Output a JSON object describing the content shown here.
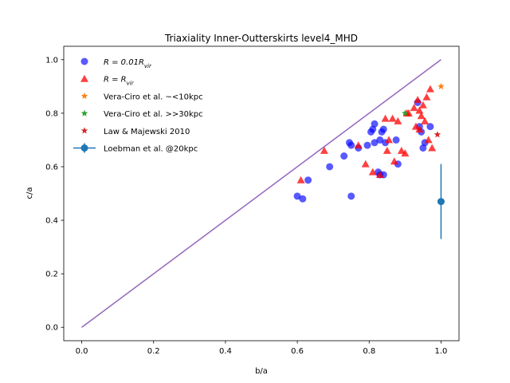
{
  "chart_data": {
    "type": "scatter",
    "title": "Triaxiality Inner-Outterskirts level4_MHD",
    "xlabel": "b/a",
    "ylabel": "c/a",
    "xlim": [
      -0.05,
      1.05
    ],
    "ylim": [
      -0.05,
      1.05
    ],
    "xticks": [
      "0.0",
      "0.2",
      "0.4",
      "0.6",
      "0.8",
      "1.0"
    ],
    "yticks": [
      "0.0",
      "0.2",
      "0.4",
      "0.6",
      "0.8",
      "1.0"
    ],
    "grid": false,
    "legend_position": "upper-left",
    "reference_line": {
      "x": [
        0.0,
        1.0
      ],
      "y": [
        0.0,
        1.0
      ],
      "color": "#9467bd"
    },
    "series": [
      {
        "name": "R = 0.01R_vir",
        "legend_label": "R = 0.01R",
        "legend_sub": "vir",
        "marker": "circle",
        "color": "#0000ff",
        "alpha": 0.65,
        "points": [
          [
            0.6,
            0.49
          ],
          [
            0.615,
            0.48
          ],
          [
            0.63,
            0.55
          ],
          [
            0.69,
            0.6
          ],
          [
            0.73,
            0.64
          ],
          [
            0.745,
            0.69
          ],
          [
            0.75,
            0.68
          ],
          [
            0.75,
            0.49
          ],
          [
            0.77,
            0.67
          ],
          [
            0.795,
            0.68
          ],
          [
            0.805,
            0.73
          ],
          [
            0.81,
            0.74
          ],
          [
            0.815,
            0.76
          ],
          [
            0.815,
            0.69
          ],
          [
            0.83,
            0.7
          ],
          [
            0.835,
            0.73
          ],
          [
            0.84,
            0.74
          ],
          [
            0.84,
            0.57
          ],
          [
            0.83,
            0.57
          ],
          [
            0.825,
            0.58
          ],
          [
            0.845,
            0.69
          ],
          [
            0.875,
            0.7
          ],
          [
            0.88,
            0.61
          ],
          [
            0.935,
            0.84
          ],
          [
            0.94,
            0.75
          ],
          [
            0.945,
            0.73
          ],
          [
            0.95,
            0.67
          ],
          [
            0.955,
            0.69
          ],
          [
            0.97,
            0.75
          ]
        ]
      },
      {
        "name": "R = R_vir",
        "legend_label": "R = R",
        "legend_sub": "vir",
        "marker": "triangle",
        "color": "#ff0000",
        "alpha": 0.75,
        "points": [
          [
            0.61,
            0.55
          ],
          [
            0.675,
            0.66
          ],
          [
            0.77,
            0.68
          ],
          [
            0.79,
            0.61
          ],
          [
            0.81,
            0.58
          ],
          [
            0.83,
            0.57
          ],
          [
            0.845,
            0.78
          ],
          [
            0.85,
            0.66
          ],
          [
            0.855,
            0.7
          ],
          [
            0.865,
            0.78
          ],
          [
            0.87,
            0.62
          ],
          [
            0.88,
            0.77
          ],
          [
            0.89,
            0.66
          ],
          [
            0.9,
            0.65
          ],
          [
            0.905,
            0.8
          ],
          [
            0.91,
            0.8
          ],
          [
            0.925,
            0.82
          ],
          [
            0.93,
            0.75
          ],
          [
            0.94,
            0.74
          ],
          [
            0.935,
            0.85
          ],
          [
            0.94,
            0.81
          ],
          [
            0.945,
            0.79
          ],
          [
            0.95,
            0.83
          ],
          [
            0.955,
            0.77
          ],
          [
            0.96,
            0.86
          ],
          [
            0.965,
            0.7
          ],
          [
            0.97,
            0.89
          ],
          [
            0.975,
            0.67
          ]
        ]
      },
      {
        "name": "Vera-Ciro et al. ~<10kpc",
        "marker": "star",
        "color": "#ff7f0e",
        "alpha": 1.0,
        "points": [
          [
            1.0,
            0.9
          ]
        ]
      },
      {
        "name": "Vera-Ciro et al. >>30kpc",
        "marker": "star",
        "color": "#2ca02c",
        "alpha": 1.0,
        "points": [
          [
            0.9,
            0.8
          ]
        ]
      },
      {
        "name": "Law & Majewski 2010",
        "marker": "star",
        "color": "#d62728",
        "alpha": 1.0,
        "points": [
          [
            0.99,
            0.72
          ]
        ]
      },
      {
        "name": "Loebman et al. @20kpc",
        "marker": "errorbar",
        "color": "#1f77b4",
        "alpha": 1.0,
        "points": [
          [
            1.0,
            0.47
          ]
        ],
        "yerr": [
          0.14
        ]
      }
    ]
  }
}
